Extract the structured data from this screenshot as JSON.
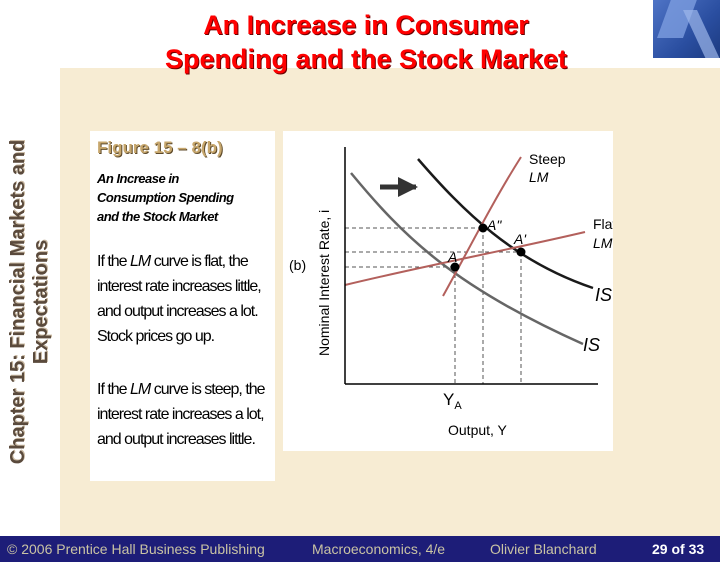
{
  "slide": {
    "title_line1": "An Increase in Consumer",
    "title_line2": "Spending and the Stock Market",
    "side_label_line1": "Chapter 15: Financial Markets and",
    "side_label_line2": "Expectations",
    "figure_label": "Figure 15 – 8(b)",
    "figure_subtitle": "An Increase in Consumption Spending and the Stock Market",
    "para1": {
      "a": "If the ",
      "em": "LM",
      "b": " curve is flat, the interest rate increases little, and output increases a lot. Stock prices go up."
    },
    "para2": {
      "a": "If the ",
      "em": "LM",
      "b": " curve is steep, the interest rate increases a lot, and output increases little."
    }
  },
  "diagram": {
    "panel_label": "(b)",
    "y_axis_label": "Nominal Interest Rate, i",
    "x_axis_label": "Output, Y",
    "x_tick_label": "Y",
    "x_tick_sub": "A",
    "curves": {
      "steep_lm": {
        "line1": "Steep",
        "line2": "LM",
        "color": "#b3605c"
      },
      "flat_lm": {
        "line1": "Flat",
        "line2": "LM",
        "color": "#b3605c"
      },
      "is_new": {
        "label": "IS'",
        "color": "#1a1a1a"
      },
      "is_old": {
        "label": "IS",
        "color": "#666666"
      }
    },
    "points": {
      "A": "A",
      "A_prime": "A'",
      "A_double_prime": "A\""
    },
    "shift_arrow": "right"
  },
  "footer": {
    "publisher": "© 2006 Prentice Hall Business Publishing",
    "book": "Macroeconomics, 4/e",
    "author": "Olivier Blanchard",
    "page": "29 of 33"
  },
  "colors": {
    "title": "#ff0000",
    "footer_bg": "#1d1d78",
    "content_bg": "#f7ecd3",
    "figure_label": "#c7a76d",
    "side_label": "#5a4a3c"
  }
}
